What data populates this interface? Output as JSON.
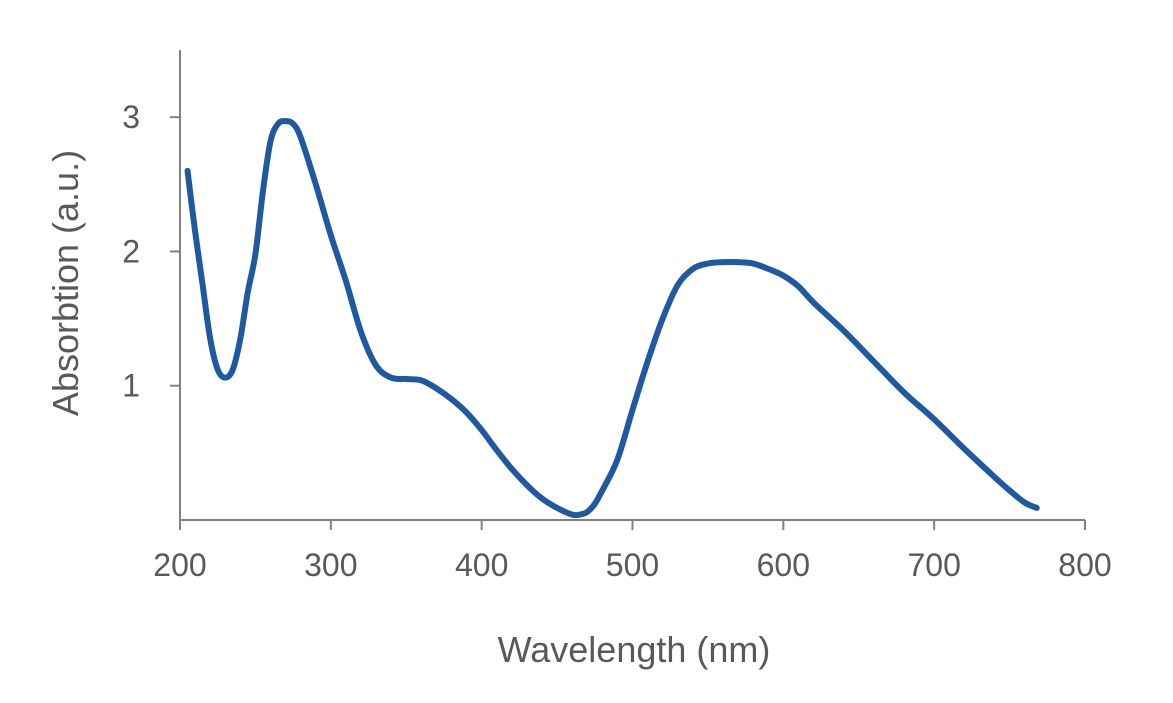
{
  "chart_data": {
    "type": "line",
    "title": "",
    "xlabel": "Wavelength (nm)",
    "ylabel": "Absorbtion (a.u.)",
    "xlim": [
      200,
      800
    ],
    "ylim": [
      0,
      3.5
    ],
    "xticks": [
      200,
      300,
      400,
      500,
      600,
      700,
      800
    ],
    "xtick_labels": [
      "200",
      "300",
      "400",
      "500",
      "600",
      "700",
      "800"
    ],
    "yticks": [
      1,
      2,
      3
    ],
    "ytick_labels": [
      "1",
      "2",
      "3"
    ],
    "grid": false,
    "legend": "none",
    "series": [
      {
        "color": "#1f5aa0",
        "x": [
          205,
          210,
          215,
          220,
          225,
          230,
          235,
          240,
          245,
          250,
          255,
          260,
          265,
          270,
          275,
          280,
          290,
          300,
          310,
          320,
          330,
          340,
          350,
          360,
          370,
          380,
          390,
          400,
          410,
          420,
          430,
          440,
          450,
          460,
          465,
          470,
          475,
          480,
          490,
          500,
          510,
          520,
          530,
          540,
          550,
          560,
          570,
          580,
          590,
          600,
          610,
          620,
          640,
          660,
          680,
          700,
          720,
          740,
          750,
          760,
          768
        ],
        "y": [
          2.6,
          2.15,
          1.75,
          1.35,
          1.12,
          1.06,
          1.12,
          1.35,
          1.7,
          1.98,
          2.45,
          2.82,
          2.95,
          2.97,
          2.95,
          2.85,
          2.5,
          2.12,
          1.78,
          1.4,
          1.15,
          1.06,
          1.05,
          1.04,
          0.98,
          0.9,
          0.8,
          0.67,
          0.52,
          0.38,
          0.26,
          0.16,
          0.09,
          0.04,
          0.04,
          0.06,
          0.12,
          0.22,
          0.45,
          0.82,
          1.18,
          1.5,
          1.75,
          1.87,
          1.91,
          1.92,
          1.92,
          1.91,
          1.87,
          1.82,
          1.74,
          1.62,
          1.41,
          1.18,
          0.95,
          0.75,
          0.53,
          0.32,
          0.22,
          0.13,
          0.09
        ]
      }
    ]
  }
}
